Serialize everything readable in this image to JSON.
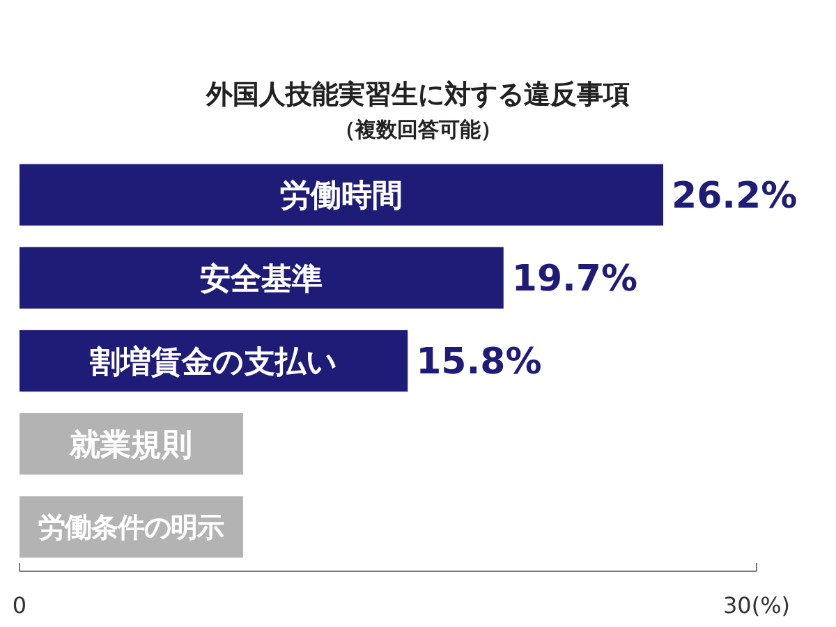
{
  "chart_data": {
    "type": "bar",
    "orientation": "horizontal",
    "title": "外国人技能実習生に対する違反事項",
    "subtitle": "（複数回答可能）",
    "categories": [
      "労働時間",
      "安全基準",
      "割増賃金の支払い",
      "就業規則",
      "労働条件の明示"
    ],
    "values": [
      26.2,
      19.7,
      15.8,
      9.1,
      9.1
    ],
    "colors": [
      "#1f1c78",
      "#1f1c78",
      "#1f1c78",
      "#b3b3b3",
      "#b3b3b3"
    ],
    "value_labels": [
      "26.2%",
      "19.7%",
      "15.8%",
      null,
      null
    ],
    "xlim": [
      0,
      30
    ],
    "xticks": [
      0,
      {
        "value": 30,
        "label": "30(%)"
      }
    ]
  }
}
